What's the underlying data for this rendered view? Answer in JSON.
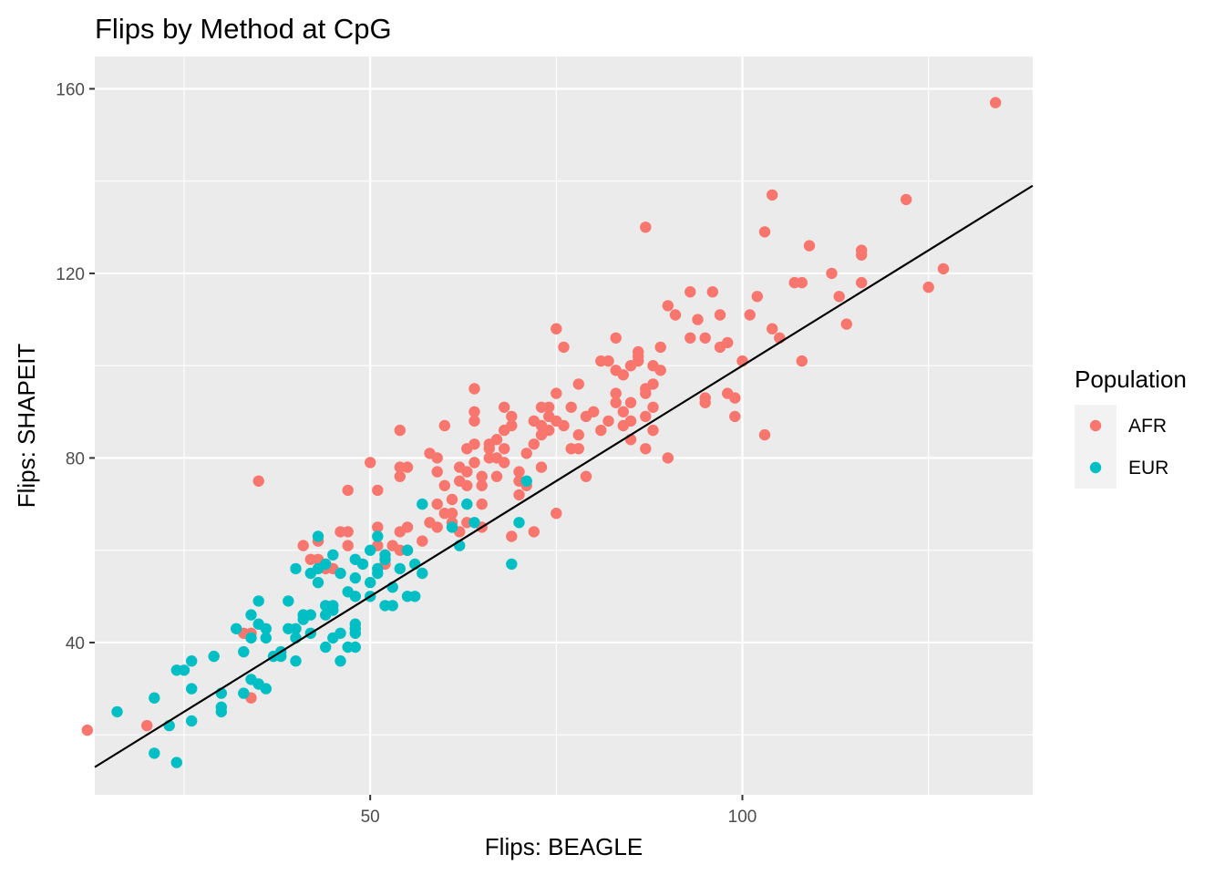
{
  "chart_data": {
    "type": "scatter",
    "title": "Flips by Method at CpG",
    "xlabel": "Flips: BEAGLE",
    "ylabel": "Flips: SHAPEIT",
    "xlim": [
      13,
      139
    ],
    "ylim": [
      7,
      167
    ],
    "x_ticks": [
      50,
      100
    ],
    "y_ticks": [
      40,
      80,
      120,
      160
    ],
    "grid": true,
    "reference_line": {
      "intercept": 0,
      "slope": 1
    },
    "legend": {
      "title": "Population",
      "position": "right"
    },
    "colors": {
      "AFR": "#F8766D",
      "EUR": "#00BFC4",
      "panel": "#EBEBEB",
      "grid": "#FFFFFF",
      "line": "#000000"
    },
    "series": [
      {
        "name": "AFR",
        "points": [
          [
            12,
            21
          ],
          [
            20,
            22
          ],
          [
            34,
            28
          ],
          [
            33,
            42
          ],
          [
            34,
            42
          ],
          [
            35,
            75
          ],
          [
            41,
            61
          ],
          [
            42,
            58
          ],
          [
            43,
            58
          ],
          [
            43,
            62
          ],
          [
            44,
            56
          ],
          [
            44,
            57
          ],
          [
            45,
            56
          ],
          [
            46,
            64
          ],
          [
            47,
            64
          ],
          [
            47,
            61
          ],
          [
            47,
            73
          ],
          [
            50,
            79
          ],
          [
            51,
            65
          ],
          [
            51,
            61
          ],
          [
            51,
            73
          ],
          [
            52,
            57
          ],
          [
            53,
            61
          ],
          [
            54,
            60
          ],
          [
            54,
            86
          ],
          [
            54,
            78
          ],
          [
            55,
            78
          ],
          [
            54,
            76
          ],
          [
            55,
            65
          ],
          [
            54,
            64
          ],
          [
            55,
            60
          ],
          [
            57,
            62
          ],
          [
            58,
            66
          ],
          [
            58,
            81
          ],
          [
            59,
            65
          ],
          [
            59,
            70
          ],
          [
            59,
            77
          ],
          [
            59,
            80
          ],
          [
            60,
            68
          ],
          [
            60,
            74
          ],
          [
            60,
            87
          ],
          [
            61,
            71
          ],
          [
            61,
            68
          ],
          [
            61,
            66
          ],
          [
            62,
            64
          ],
          [
            62,
            78
          ],
          [
            62,
            75
          ],
          [
            63,
            82
          ],
          [
            63,
            74
          ],
          [
            63,
            66
          ],
          [
            63,
            77
          ],
          [
            64,
            95
          ],
          [
            64,
            90
          ],
          [
            64,
            88
          ],
          [
            64,
            83
          ],
          [
            64,
            79
          ],
          [
            65,
            76
          ],
          [
            65,
            74
          ],
          [
            65,
            70
          ],
          [
            65,
            65
          ],
          [
            66,
            82
          ],
          [
            66,
            80
          ],
          [
            66,
            83
          ],
          [
            67,
            84
          ],
          [
            67,
            76
          ],
          [
            67,
            80
          ],
          [
            68,
            82
          ],
          [
            68,
            86
          ],
          [
            68,
            79
          ],
          [
            68,
            91
          ],
          [
            69,
            89
          ],
          [
            69,
            87
          ],
          [
            69,
            63
          ],
          [
            70,
            77
          ],
          [
            70,
            75
          ],
          [
            70,
            72
          ],
          [
            71,
            74
          ],
          [
            71,
            81
          ],
          [
            72,
            83
          ],
          [
            72,
            64
          ],
          [
            72,
            88
          ],
          [
            73,
            91
          ],
          [
            73,
            87
          ],
          [
            73,
            85
          ],
          [
            73,
            78
          ],
          [
            74,
            91
          ],
          [
            74,
            86
          ],
          [
            74,
            89
          ],
          [
            75,
            68
          ],
          [
            75,
            108
          ],
          [
            75,
            94
          ],
          [
            75,
            88
          ],
          [
            76,
            104
          ],
          [
            76,
            87
          ],
          [
            77,
            91
          ],
          [
            77,
            82
          ],
          [
            78,
            85
          ],
          [
            78,
            82
          ],
          [
            78,
            96
          ],
          [
            79,
            89
          ],
          [
            79,
            76
          ],
          [
            80,
            90
          ],
          [
            81,
            101
          ],
          [
            81,
            86
          ],
          [
            82,
            101
          ],
          [
            82,
            88
          ],
          [
            83,
            106
          ],
          [
            83,
            99
          ],
          [
            83,
            94
          ],
          [
            83,
            92
          ],
          [
            84,
            98
          ],
          [
            84,
            87
          ],
          [
            84,
            90
          ],
          [
            85,
            84
          ],
          [
            85,
            88
          ],
          [
            85,
            92
          ],
          [
            85,
            100
          ],
          [
            86,
            103
          ],
          [
            86,
            102
          ],
          [
            86,
            101
          ],
          [
            87,
            130
          ],
          [
            87,
            95
          ],
          [
            87,
            94
          ],
          [
            87,
            89
          ],
          [
            87,
            82
          ],
          [
            88,
            100
          ],
          [
            88,
            96
          ],
          [
            88,
            91
          ],
          [
            88,
            86
          ],
          [
            89,
            104
          ],
          [
            89,
            99
          ],
          [
            90,
            80
          ],
          [
            90,
            113
          ],
          [
            91,
            111
          ],
          [
            93,
            116
          ],
          [
            93,
            106
          ],
          [
            94,
            110
          ],
          [
            95,
            92
          ],
          [
            95,
            93
          ],
          [
            95,
            106
          ],
          [
            96,
            116
          ],
          [
            97,
            111
          ],
          [
            97,
            104
          ],
          [
            98,
            105
          ],
          [
            98,
            94
          ],
          [
            99,
            89
          ],
          [
            99,
            93
          ],
          [
            100,
            101
          ],
          [
            101,
            111
          ],
          [
            102,
            115
          ],
          [
            103,
            85
          ],
          [
            103,
            129
          ],
          [
            104,
            137
          ],
          [
            104,
            108
          ],
          [
            105,
            106
          ],
          [
            107,
            118
          ],
          [
            108,
            101
          ],
          [
            108,
            118
          ],
          [
            109,
            126
          ],
          [
            112,
            120
          ],
          [
            113,
            115
          ],
          [
            114,
            109
          ],
          [
            116,
            125
          ],
          [
            116,
            124
          ],
          [
            116,
            118
          ],
          [
            122,
            136
          ],
          [
            125,
            117
          ],
          [
            127,
            121
          ],
          [
            134,
            157
          ]
        ]
      },
      {
        "name": "EUR",
        "points": [
          [
            16,
            25
          ],
          [
            21,
            28
          ],
          [
            21,
            16
          ],
          [
            23,
            22
          ],
          [
            24,
            14
          ],
          [
            24,
            34
          ],
          [
            25,
            34
          ],
          [
            26,
            30
          ],
          [
            26,
            36
          ],
          [
            26,
            23
          ],
          [
            29,
            37
          ],
          [
            30,
            29
          ],
          [
            30,
            26
          ],
          [
            30,
            25
          ],
          [
            32,
            43
          ],
          [
            33,
            38
          ],
          [
            33,
            29
          ],
          [
            34,
            32
          ],
          [
            34,
            41
          ],
          [
            34,
            46
          ],
          [
            35,
            31
          ],
          [
            35,
            49
          ],
          [
            35,
            44
          ],
          [
            36,
            41
          ],
          [
            36,
            43
          ],
          [
            36,
            30
          ],
          [
            37,
            37
          ],
          [
            38,
            38
          ],
          [
            38,
            37
          ],
          [
            39,
            49
          ],
          [
            39,
            43
          ],
          [
            40,
            56
          ],
          [
            40,
            43
          ],
          [
            40,
            41
          ],
          [
            40,
            36
          ],
          [
            41,
            45
          ],
          [
            41,
            46
          ],
          [
            42,
            42
          ],
          [
            42,
            55
          ],
          [
            42,
            46
          ],
          [
            43,
            63
          ],
          [
            43,
            53
          ],
          [
            43,
            56
          ],
          [
            44,
            57
          ],
          [
            44,
            48
          ],
          [
            44,
            46
          ],
          [
            44,
            39
          ],
          [
            45,
            59
          ],
          [
            45,
            48
          ],
          [
            45,
            47
          ],
          [
            45,
            41
          ],
          [
            46,
            55
          ],
          [
            46,
            42
          ],
          [
            46,
            36
          ],
          [
            47,
            51
          ],
          [
            47,
            39
          ],
          [
            48,
            58
          ],
          [
            48,
            54
          ],
          [
            48,
            50
          ],
          [
            48,
            44
          ],
          [
            48,
            43
          ],
          [
            48,
            42
          ],
          [
            48,
            39
          ],
          [
            49,
            57
          ],
          [
            50,
            60
          ],
          [
            50,
            53
          ],
          [
            50,
            50
          ],
          [
            51,
            63
          ],
          [
            51,
            56
          ],
          [
            51,
            55
          ],
          [
            52,
            59
          ],
          [
            52,
            48
          ],
          [
            52,
            58
          ],
          [
            53,
            52
          ],
          [
            53,
            48
          ],
          [
            54,
            56
          ],
          [
            55,
            60
          ],
          [
            55,
            50
          ],
          [
            56,
            57
          ],
          [
            56,
            50
          ],
          [
            57,
            55
          ],
          [
            57,
            70
          ],
          [
            61,
            65
          ],
          [
            62,
            61
          ],
          [
            63,
            70
          ],
          [
            64,
            66
          ],
          [
            69,
            57
          ],
          [
            70,
            66
          ],
          [
            71,
            75
          ]
        ]
      }
    ]
  }
}
